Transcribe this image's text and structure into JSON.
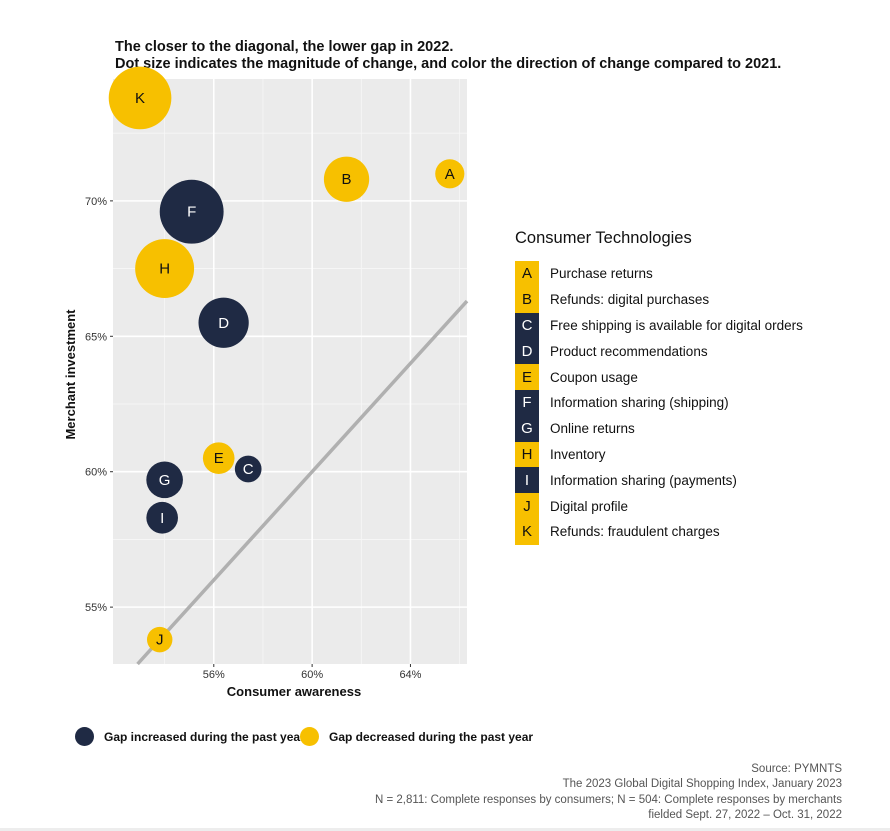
{
  "header": {
    "line1": "The closer to the diagonal, the lower gap in 2022.",
    "line2": "Dot size indicates the magnitude of change, and color the direction of change compared to 2021."
  },
  "colors": {
    "increased": "#1f2a44",
    "decreased": "#f7c000",
    "panel": "#ebebeb",
    "diagonal": "#b0b0b0"
  },
  "chart_data": {
    "type": "scatter",
    "xlabel": "Consumer awareness",
    "ylabel": "Merchant investment",
    "x_ticks": [
      56,
      60,
      64
    ],
    "x_tick_labels": [
      "56%",
      "60%",
      "64%"
    ],
    "y_ticks": [
      55,
      60,
      65,
      70
    ],
    "y_tick_labels": [
      "55%",
      "60%",
      "65%",
      "70%"
    ],
    "xlim": [
      51.9,
      66.3
    ],
    "ylim": [
      52.9,
      74.5
    ],
    "diagonal": true,
    "grid": true,
    "points": [
      {
        "label": "A",
        "x": 65.6,
        "y": 71.0,
        "size": 0.9,
        "direction": "decreased"
      },
      {
        "label": "B",
        "x": 61.4,
        "y": 70.8,
        "size": 2.2,
        "direction": "decreased"
      },
      {
        "label": "C",
        "x": 57.4,
        "y": 60.1,
        "size": 0.7,
        "direction": "increased"
      },
      {
        "label": "D",
        "x": 56.4,
        "y": 65.5,
        "size": 2.6,
        "direction": "increased"
      },
      {
        "label": "E",
        "x": 56.2,
        "y": 60.5,
        "size": 1.1,
        "direction": "decreased"
      },
      {
        "label": "F",
        "x": 55.1,
        "y": 69.6,
        "size": 3.7,
        "direction": "increased"
      },
      {
        "label": "G",
        "x": 54.0,
        "y": 59.7,
        "size": 1.5,
        "direction": "increased"
      },
      {
        "label": "H",
        "x": 54.0,
        "y": 67.5,
        "size": 3.3,
        "direction": "decreased"
      },
      {
        "label": "I",
        "x": 53.9,
        "y": 58.3,
        "size": 1.1,
        "direction": "increased"
      },
      {
        "label": "J",
        "x": 53.8,
        "y": 53.8,
        "size": 0.6,
        "direction": "decreased"
      },
      {
        "label": "K",
        "x": 53.0,
        "y": 73.8,
        "size": 3.6,
        "direction": "decreased"
      }
    ]
  },
  "legend": {
    "title": "Consumer Technologies",
    "items": [
      {
        "code": "A",
        "label": "Purchase returns",
        "direction": "decreased"
      },
      {
        "code": "B",
        "label": "Refunds: digital purchases",
        "direction": "decreased"
      },
      {
        "code": "C",
        "label": "Free shipping is available for digital orders",
        "direction": "increased"
      },
      {
        "code": "D",
        "label": "Product recommendations",
        "direction": "increased"
      },
      {
        "code": "E",
        "label": "Coupon usage",
        "direction": "decreased"
      },
      {
        "code": "F",
        "label": "Information sharing (shipping)",
        "direction": "increased"
      },
      {
        "code": "G",
        "label": "Online returns",
        "direction": "increased"
      },
      {
        "code": "H",
        "label": "Inventory",
        "direction": "decreased"
      },
      {
        "code": "I",
        "label": "Information sharing (payments)",
        "direction": "increased"
      },
      {
        "code": "J",
        "label": "Digital profile",
        "direction": "decreased"
      },
      {
        "code": "K",
        "label": "Refunds: fraudulent charges",
        "direction": "decreased"
      }
    ]
  },
  "key": {
    "increased_label": "Gap increased during the past year",
    "decreased_label": "Gap decreased during the past year"
  },
  "source": {
    "line1": "Source: PYMNTS",
    "line2": "The 2023 Global Digital Shopping Index, January 2023",
    "line3": "N = 2,811: Complete responses by consumers; N = 504: Complete responses by merchants",
    "line4": "fielded Sept. 27, 2022 – Oct. 31, 2022"
  }
}
